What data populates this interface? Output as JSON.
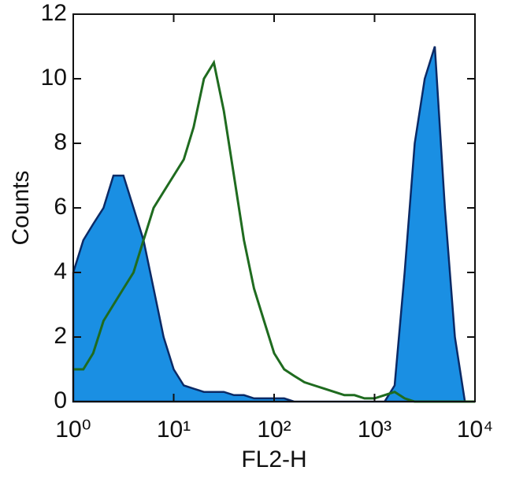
{
  "chart_data": {
    "type": "histogram-overlay",
    "xlabel": "FL2-H",
    "ylabel": "Counts",
    "log_x": true,
    "xlim": [
      1,
      10000
    ],
    "xticks": [
      {
        "value": 1,
        "label": "10⁰"
      },
      {
        "value": 10,
        "label": "10¹"
      },
      {
        "value": 100,
        "label": "10²"
      },
      {
        "value": 1000,
        "label": "10³"
      },
      {
        "value": 10000,
        "label": "10⁴"
      }
    ],
    "ylim": [
      0,
      12
    ],
    "yticks": [
      0,
      2,
      4,
      6,
      8,
      10,
      12
    ],
    "x": [
      1,
      1.26,
      1.58,
      2,
      2.51,
      3.16,
      3.98,
      5.01,
      6.31,
      7.94,
      10,
      12.6,
      15.8,
      20,
      25.1,
      31.6,
      39.8,
      50.1,
      63.1,
      79.4,
      100,
      126,
      158,
      200,
      251,
      316,
      398,
      501,
      631,
      794,
      1000,
      1259,
      1585,
      1995,
      2512,
      3162,
      3981,
      5012,
      6310,
      7943,
      10000
    ],
    "series": [
      {
        "color": "#1a8fe3",
        "edge_color": "#0b2a66",
        "filled": true,
        "values": [
          4,
          5,
          5.5,
          6,
          7,
          7,
          6,
          5,
          3.5,
          2,
          1,
          0.5,
          0.4,
          0.3,
          0.3,
          0.3,
          0.2,
          0.2,
          0.1,
          0.1,
          0.1,
          0.1,
          0,
          0,
          0,
          0,
          0,
          0,
          0,
          0,
          0,
          0,
          0.5,
          4,
          8,
          10,
          11,
          6,
          2,
          0,
          0
        ]
      },
      {
        "color": "#1f6b1f",
        "filled": false,
        "values": [
          1,
          1,
          1.5,
          2.5,
          3,
          3.5,
          4,
          5,
          6,
          6.5,
          7,
          7.5,
          8.5,
          10,
          10.5,
          9,
          7,
          5,
          3.5,
          2.5,
          1.5,
          1,
          0.8,
          0.6,
          0.5,
          0.4,
          0.3,
          0.2,
          0.2,
          0.1,
          0.1,
          0.2,
          0.3,
          0.1,
          0,
          0,
          0,
          0,
          0,
          0,
          0
        ]
      }
    ]
  }
}
